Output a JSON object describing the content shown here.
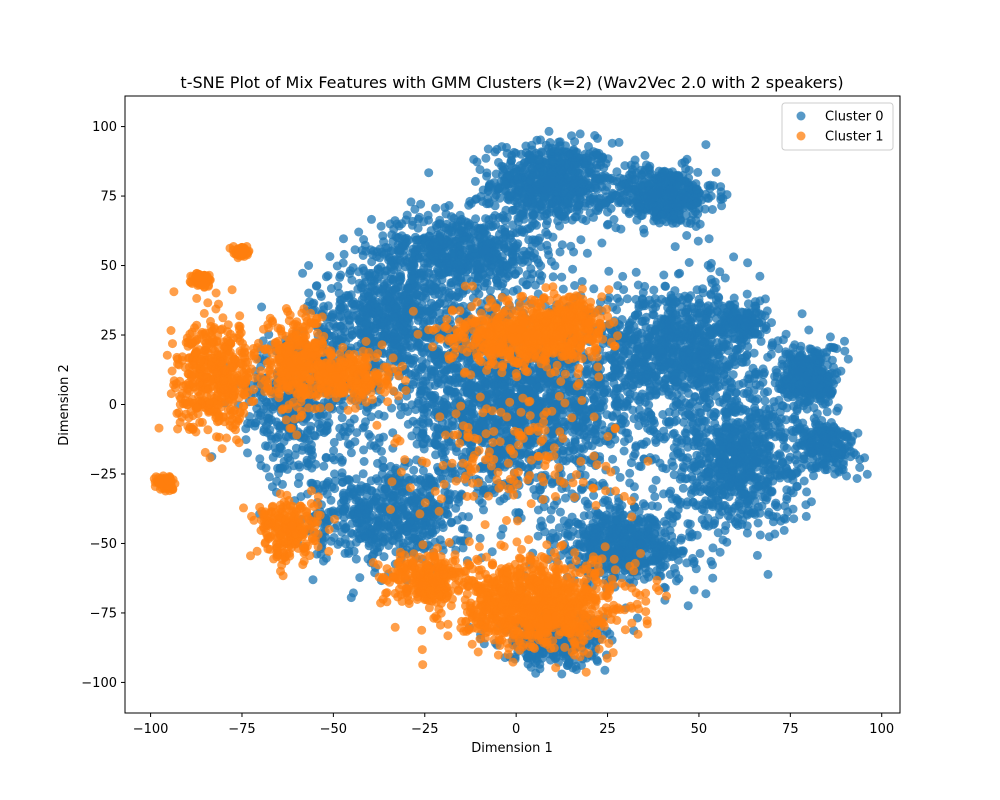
{
  "chart_data": {
    "type": "scatter",
    "title": "t-SNE Plot of Mix Features with GMM Clusters (k=2) (Wav2Vec 2.0 with 2 speakers)",
    "xlabel": "Dimension 1",
    "ylabel": "Dimension 2",
    "xlim": [
      -107,
      105
    ],
    "ylim": [
      -111,
      111
    ],
    "x_ticks": [
      -100,
      -75,
      -50,
      -25,
      0,
      25,
      50,
      75,
      100
    ],
    "y_ticks": [
      -100,
      -75,
      -50,
      -25,
      0,
      25,
      50,
      75,
      100
    ],
    "grid": false,
    "legend_position": "upper right",
    "series": [
      {
        "name": "Cluster 0",
        "color": "#1f77b4",
        "regions": [
          {
            "center": [
              10,
              80
            ],
            "spread": [
              14,
              12
            ],
            "weight": 6
          },
          {
            "center": [
              40,
              75
            ],
            "spread": [
              12,
              9
            ],
            "weight": 4
          },
          {
            "center": [
              -15,
              55
            ],
            "spread": [
              20,
              12
            ],
            "weight": 6
          },
          {
            "center": [
              -35,
              30
            ],
            "spread": [
              18,
              18
            ],
            "weight": 6
          },
          {
            "center": [
              0,
              0
            ],
            "spread": [
              30,
              28
            ],
            "weight": 16
          },
          {
            "center": [
              45,
              20
            ],
            "spread": [
              18,
              20
            ],
            "weight": 8
          },
          {
            "center": [
              60,
              -20
            ],
            "spread": [
              15,
              20
            ],
            "weight": 7
          },
          {
            "center": [
              80,
              10
            ],
            "spread": [
              7,
              10
            ],
            "weight": 3
          },
          {
            "center": [
              85,
              -15
            ],
            "spread": [
              7,
              8
            ],
            "weight": 2
          },
          {
            "center": [
              62,
              30
            ],
            "spread": [
              5,
              5
            ],
            "weight": 1
          },
          {
            "center": [
              -35,
              -40
            ],
            "spread": [
              18,
              15
            ],
            "weight": 5
          },
          {
            "center": [
              30,
              -50
            ],
            "spread": [
              15,
              12
            ],
            "weight": 5
          },
          {
            "center": [
              -60,
              0
            ],
            "spread": [
              12,
              20
            ],
            "weight": 4
          },
          {
            "center": [
              10,
              -85
            ],
            "spread": [
              12,
              8
            ],
            "weight": 3
          }
        ]
      },
      {
        "name": "Cluster 1",
        "color": "#ff7f0e",
        "regions": [
          {
            "center": [
              -82,
              10
            ],
            "spread": [
              9,
              16
            ],
            "weight": 6
          },
          {
            "center": [
              -60,
              15
            ],
            "spread": [
              8,
              14
            ],
            "weight": 4
          },
          {
            "center": [
              -45,
              10
            ],
            "spread": [
              10,
              8
            ],
            "weight": 3
          },
          {
            "center": [
              -62,
              -45
            ],
            "spread": [
              7,
              9
            ],
            "weight": 3
          },
          {
            "center": [
              0,
              25
            ],
            "spread": [
              15,
              10
            ],
            "weight": 6
          },
          {
            "center": [
              15,
              28
            ],
            "spread": [
              8,
              10
            ],
            "weight": 3
          },
          {
            "center": [
              5,
              -72
            ],
            "spread": [
              20,
              13
            ],
            "weight": 12
          },
          {
            "center": [
              -25,
              -62
            ],
            "spread": [
              9,
              7
            ],
            "weight": 3
          },
          {
            "center": [
              -96,
              -28
            ],
            "spread": [
              2,
              2
            ],
            "weight": 1
          },
          {
            "center": [
              -86,
              45
            ],
            "spread": [
              2,
              2
            ],
            "weight": 1
          },
          {
            "center": [
              -75,
              55
            ],
            "spread": [
              1.5,
              1.5
            ],
            "weight": 1
          },
          {
            "center": [
              0,
              -20
            ],
            "spread": [
              25,
              20
            ],
            "weight": 2
          }
        ]
      }
    ]
  }
}
